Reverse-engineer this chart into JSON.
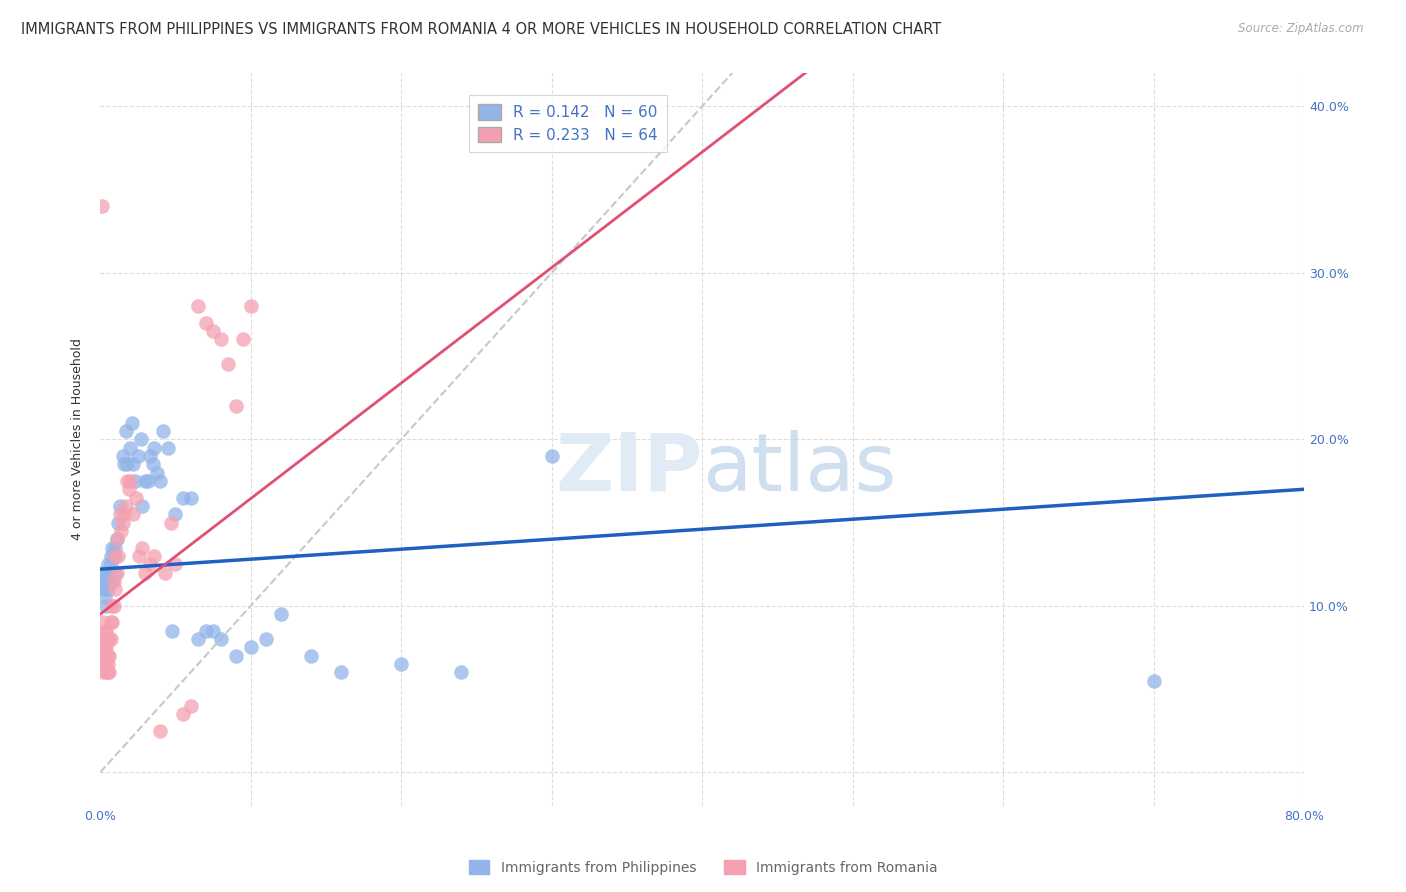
{
  "title": "IMMIGRANTS FROM PHILIPPINES VS IMMIGRANTS FROM ROMANIA 4 OR MORE VEHICLES IN HOUSEHOLD CORRELATION CHART",
  "source": "Source: ZipAtlas.com",
  "ylabel": "4 or more Vehicles in Household",
  "xlim": [
    0,
    0.8
  ],
  "ylim": [
    -0.02,
    0.42
  ],
  "xticks": [
    0.0,
    0.1,
    0.2,
    0.3,
    0.4,
    0.5,
    0.6,
    0.7,
    0.8
  ],
  "xticklabels": [
    "0.0%",
    "",
    "",
    "",
    "",
    "",
    "",
    "",
    "80.0%"
  ],
  "yticks": [
    0.0,
    0.1,
    0.2,
    0.3,
    0.4
  ],
  "philippines_R": 0.142,
  "philippines_N": 60,
  "romania_R": 0.233,
  "romania_N": 64,
  "philippines_color": "#92b4e8",
  "romania_color": "#f4a0b0",
  "philippines_line_color": "#2060c0",
  "romania_line_color": "#e05070",
  "diagonal_color": "#c8c8c8",
  "background_color": "#ffffff",
  "grid_color": "#dddddd",
  "axis_color": "#4472c4",
  "title_color": "#333333",
  "title_fontsize": 10.5,
  "axis_label_fontsize": 9,
  "tick_label_fontsize": 9,
  "legend_fontsize": 11,
  "philippines_x": [
    0.001,
    0.002,
    0.002,
    0.003,
    0.003,
    0.003,
    0.004,
    0.004,
    0.005,
    0.005,
    0.006,
    0.006,
    0.007,
    0.007,
    0.008,
    0.008,
    0.009,
    0.01,
    0.01,
    0.011,
    0.012,
    0.013,
    0.015,
    0.016,
    0.017,
    0.018,
    0.02,
    0.021,
    0.022,
    0.023,
    0.025,
    0.027,
    0.028,
    0.03,
    0.032,
    0.033,
    0.035,
    0.036,
    0.038,
    0.04,
    0.042,
    0.045,
    0.048,
    0.05,
    0.055,
    0.06,
    0.065,
    0.07,
    0.075,
    0.08,
    0.09,
    0.1,
    0.11,
    0.12,
    0.14,
    0.16,
    0.2,
    0.24,
    0.3,
    0.7
  ],
  "philippines_y": [
    0.12,
    0.115,
    0.11,
    0.12,
    0.11,
    0.105,
    0.1,
    0.115,
    0.125,
    0.11,
    0.115,
    0.12,
    0.13,
    0.125,
    0.135,
    0.115,
    0.13,
    0.12,
    0.135,
    0.14,
    0.15,
    0.16,
    0.19,
    0.185,
    0.205,
    0.185,
    0.195,
    0.21,
    0.185,
    0.175,
    0.19,
    0.2,
    0.16,
    0.175,
    0.175,
    0.19,
    0.185,
    0.195,
    0.18,
    0.175,
    0.205,
    0.195,
    0.085,
    0.155,
    0.165,
    0.165,
    0.08,
    0.085,
    0.085,
    0.08,
    0.07,
    0.075,
    0.08,
    0.095,
    0.07,
    0.06,
    0.065,
    0.06,
    0.19,
    0.055
  ],
  "romania_x": [
    0.001,
    0.001,
    0.001,
    0.002,
    0.002,
    0.002,
    0.002,
    0.002,
    0.003,
    0.003,
    0.003,
    0.003,
    0.004,
    0.004,
    0.004,
    0.004,
    0.005,
    0.005,
    0.005,
    0.005,
    0.006,
    0.006,
    0.006,
    0.007,
    0.007,
    0.008,
    0.008,
    0.009,
    0.009,
    0.01,
    0.01,
    0.011,
    0.011,
    0.012,
    0.013,
    0.014,
    0.015,
    0.016,
    0.017,
    0.018,
    0.019,
    0.02,
    0.022,
    0.024,
    0.026,
    0.028,
    0.03,
    0.033,
    0.036,
    0.04,
    0.043,
    0.047,
    0.05,
    0.055,
    0.06,
    0.065,
    0.07,
    0.075,
    0.08,
    0.085,
    0.09,
    0.095,
    0.1,
    0.001
  ],
  "romania_y": [
    0.07,
    0.075,
    0.08,
    0.06,
    0.065,
    0.07,
    0.08,
    0.09,
    0.065,
    0.07,
    0.075,
    0.085,
    0.06,
    0.065,
    0.075,
    0.085,
    0.06,
    0.065,
    0.07,
    0.08,
    0.06,
    0.07,
    0.08,
    0.08,
    0.09,
    0.09,
    0.1,
    0.1,
    0.115,
    0.11,
    0.13,
    0.12,
    0.14,
    0.13,
    0.155,
    0.145,
    0.15,
    0.155,
    0.16,
    0.175,
    0.17,
    0.175,
    0.155,
    0.165,
    0.13,
    0.135,
    0.12,
    0.125,
    0.13,
    0.025,
    0.12,
    0.15,
    0.125,
    0.035,
    0.04,
    0.28,
    0.27,
    0.265,
    0.26,
    0.245,
    0.22,
    0.26,
    0.28,
    0.34
  ]
}
